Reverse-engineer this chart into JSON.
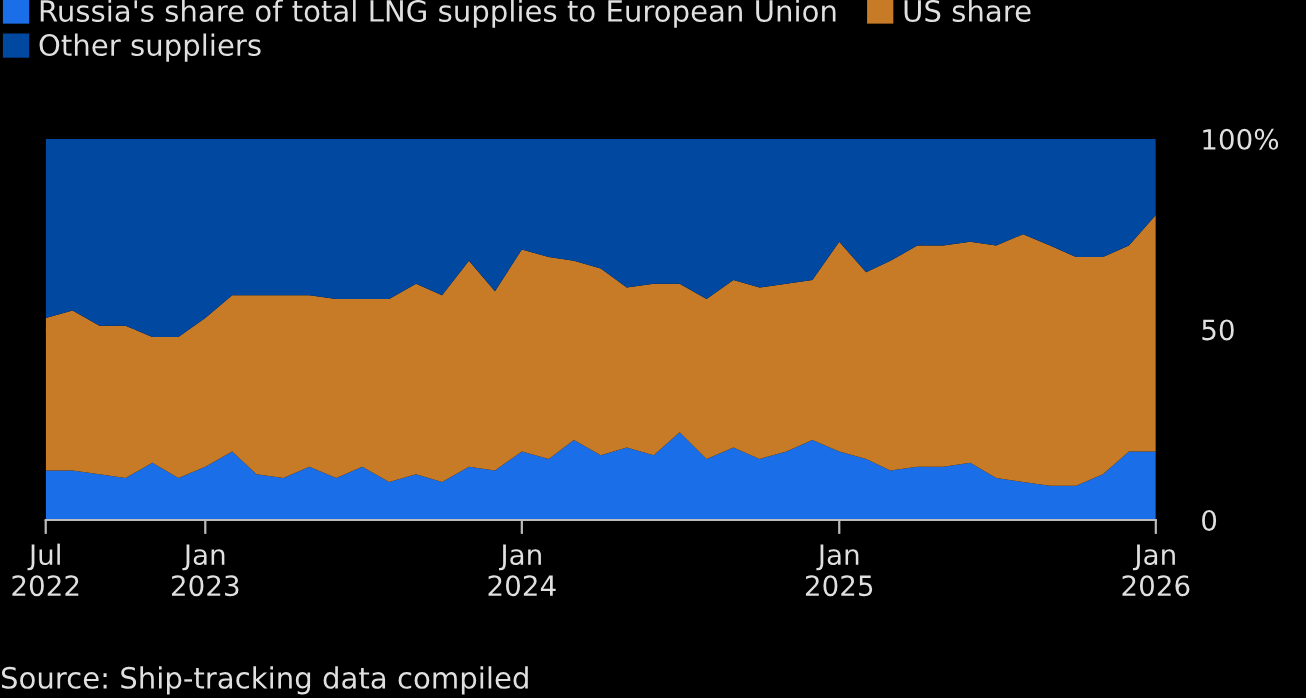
{
  "chart_data": {
    "type": "area",
    "stacked": true,
    "x": [
      "2022-07",
      "2022-08",
      "2022-09",
      "2022-10",
      "2022-11",
      "2022-12",
      "2023-01",
      "2023-02",
      "2023-03",
      "2023-04",
      "2023-05",
      "2023-06",
      "2023-07",
      "2023-08",
      "2023-09",
      "2023-10",
      "2023-11",
      "2023-12",
      "2024-01",
      "2024-02",
      "2024-03",
      "2024-04",
      "2024-05",
      "2024-06",
      "2024-07",
      "2024-08",
      "2024-09",
      "2024-10",
      "2024-11",
      "2024-12",
      "2025-01",
      "2025-02",
      "2025-03",
      "2025-04",
      "2025-05",
      "2025-06",
      "2025-07",
      "2025-08",
      "2025-09",
      "2025-10",
      "2025-11",
      "2025-12",
      "2026-01"
    ],
    "series": [
      {
        "name": "Russia's share of total LNG supplies to European Union",
        "color": "#1a6fe8",
        "values": [
          13,
          13,
          12,
          11,
          15,
          11,
          14,
          18,
          12,
          11,
          14,
          11,
          14,
          10,
          12,
          10,
          14,
          13,
          18,
          16,
          21,
          17,
          19,
          17,
          23,
          16,
          19,
          16,
          18,
          21,
          18,
          16,
          13,
          14,
          14,
          15,
          11,
          10,
          9,
          9,
          12,
          18,
          18
        ]
      },
      {
        "name": "US share",
        "color": "#c87b26",
        "values": [
          40,
          42,
          39,
          40,
          33,
          37,
          39,
          41,
          47,
          48,
          45,
          47,
          44,
          48,
          50,
          49,
          54,
          47,
          53,
          53,
          47,
          49,
          42,
          45,
          39,
          42,
          44,
          45,
          44,
          42,
          55,
          49,
          55,
          58,
          58,
          58,
          61,
          65,
          63,
          60,
          57,
          54,
          62
        ]
      },
      {
        "name": "Other suppliers",
        "color": "#0048a0",
        "values": [
          47,
          45,
          49,
          49,
          52,
          52,
          47,
          41,
          41,
          41,
          41,
          42,
          42,
          42,
          38,
          41,
          32,
          40,
          29,
          31,
          32,
          34,
          39,
          38,
          38,
          42,
          37,
          39,
          38,
          37,
          27,
          35,
          32,
          28,
          28,
          27,
          28,
          25,
          28,
          31,
          31,
          28,
          20
        ]
      }
    ],
    "xlim": [
      "2022-07",
      "2026-01"
    ],
    "xticks": [
      {
        "value": "2022-07",
        "label": "Jul\n2022"
      },
      {
        "value": "2023-01",
        "label": "Jan\n2023"
      },
      {
        "value": "2024-01",
        "label": "Jan\n2024"
      },
      {
        "value": "2025-01",
        "label": "Jan\n2025"
      },
      {
        "value": "2026-01",
        "label": "Jan\n2026"
      }
    ],
    "ylim": [
      0,
      100
    ],
    "yticks": [
      0,
      50,
      {
        "value": 100,
        "label": "100%"
      }
    ],
    "grid": "y",
    "legend": "top left",
    "annotations": [
      "Source: Ship-tracking data compiled"
    ]
  }
}
